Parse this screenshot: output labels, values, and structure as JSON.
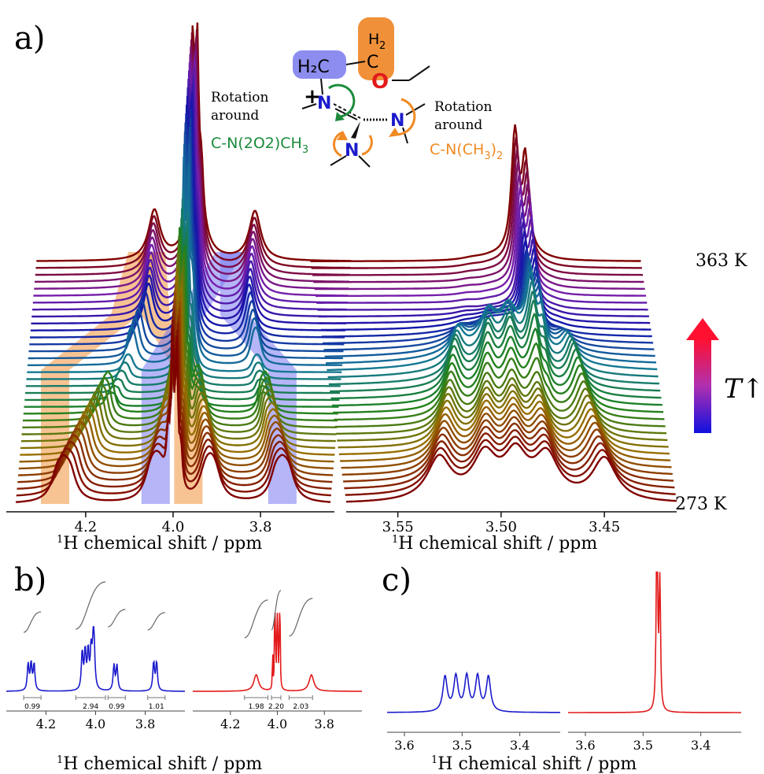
{
  "figure": {
    "panel_a_label": "a)",
    "panel_b_label": "b)",
    "panel_c_label": "c)"
  },
  "annotations": {
    "rotation_left_line1": "Rotation",
    "rotation_left_line2": "around",
    "rotation_left_bond": "C-N(2O2)CH",
    "rotation_left_sub": "3",
    "rotation_right_line1": "Rotation",
    "rotation_right_line2": "around",
    "rotation_right_bond": "C-N(CH",
    "rotation_right_sub": "3",
    "rotation_right_tail": ")",
    "rotation_right_sub2": "2",
    "temp_top": "363 K",
    "temp_bottom": "273 K",
    "temp_arrow_label": "T↑",
    "colors": {
      "green": "#1a8a3a",
      "orange": "#f08a24",
      "blue": "#1b1bcc",
      "red": "#e21a1a"
    }
  },
  "molecule": {
    "h2c_left": "H₂C",
    "c_top": "C",
    "h2_top": "H",
    "h2_top_sub": "2",
    "o_atom": "O",
    "n_center": "N",
    "n_right": "N",
    "n_bottom": "N",
    "charge": "+"
  },
  "axis_label": {
    "prefix_sup": "1",
    "text": "H chemical shift / ppm"
  },
  "chart_data": [
    {
      "panel": "a-left",
      "type": "line",
      "xlim": [
        4.36,
        3.64
      ],
      "ticks": [
        "4.2",
        "4.0",
        "3.8"
      ],
      "n_traces": 36,
      "temperature_range_K": [
        273,
        363
      ],
      "series": [
        {
          "name": "273 K",
          "peaks_ppm": [
            4.26,
            4.24,
            4.22,
            4.05,
            4.03,
            4.01,
            4.0,
            3.99,
            3.92,
            3.9,
            3.76,
            3.74
          ]
        },
        {
          "name": "363 K",
          "peaks_ppm": [
            4.09,
            4.0,
            3.99,
            3.86
          ]
        }
      ]
    },
    {
      "panel": "a-right",
      "type": "line",
      "xlim": [
        3.575,
        3.415
      ],
      "ticks": [
        "3.55",
        "3.50",
        "3.45"
      ],
      "n_traces": 36,
      "temperature_range_K": [
        273,
        363
      ],
      "series": [
        {
          "name": "273 K",
          "peaks_ppm": [
            3.53,
            3.508,
            3.493,
            3.478,
            3.45
          ]
        },
        {
          "name": "363 K",
          "peaks_ppm": [
            3.476,
            3.472
          ]
        }
      ]
    },
    {
      "panel": "b-left",
      "type": "line",
      "color": "#1b1bcc",
      "xlim": [
        4.36,
        3.64
      ],
      "ticks": [
        "4.2",
        "4.0",
        "3.8"
      ],
      "integrals": [
        "0.99",
        "2.94",
        "0.99",
        "1.01"
      ]
    },
    {
      "panel": "b-right",
      "type": "line",
      "color": "#e21a1a",
      "xlim": [
        4.36,
        3.64
      ],
      "ticks": [
        "4.2",
        "4.0",
        "3.8"
      ],
      "integrals": [
        "1.98",
        "2.20",
        "2.03"
      ]
    },
    {
      "panel": "c-left",
      "type": "line",
      "color": "#1b1bcc",
      "xlim": [
        3.63,
        3.33
      ],
      "ticks": [
        "3.6",
        "3.5",
        "3.4"
      ],
      "peaks_ppm": [
        3.53,
        3.51,
        3.496,
        3.48,
        3.455
      ]
    },
    {
      "panel": "c-right",
      "type": "line",
      "color": "#e21a1a",
      "xlim": [
        3.63,
        3.33
      ],
      "ticks": [
        "3.6",
        "3.5",
        "3.4"
      ],
      "peaks_ppm": [
        3.476,
        3.471
      ]
    }
  ]
}
